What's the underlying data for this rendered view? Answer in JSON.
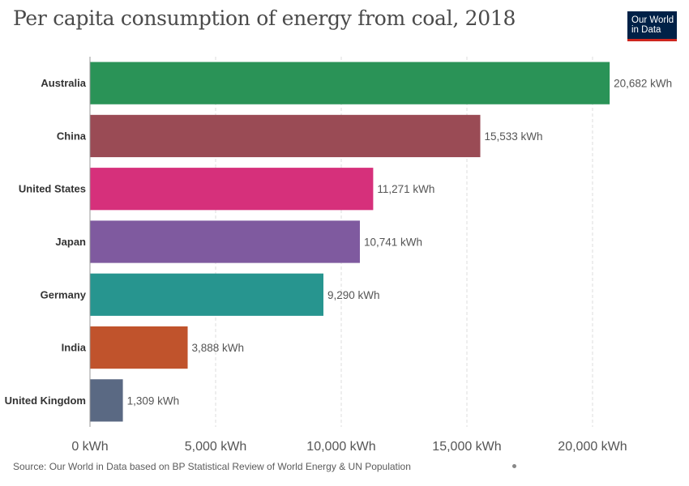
{
  "title": "Per capita consumption of energy from coal, 2018",
  "logo": {
    "line1": "Our World",
    "line2": "in Data"
  },
  "source": "Source: Our World in Data based on BP Statistical Review of World Energy & UN Population",
  "chart_data": {
    "type": "bar",
    "orientation": "horizontal",
    "title": "Per capita consumption of energy from coal, 2018",
    "categories": [
      "Australia",
      "China",
      "United States",
      "Japan",
      "Germany",
      "India",
      "United Kingdom"
    ],
    "values": [
      20682,
      15533,
      11271,
      10741,
      9290,
      3888,
      1309
    ],
    "value_labels": [
      "20,682 kWh",
      "15,533 kWh",
      "11,271 kWh",
      "10,741 kWh",
      "9,290 kWh",
      "3,888 kWh",
      "1,309 kWh"
    ],
    "colors": [
      "#2a9357",
      "#9a4b55",
      "#d6307b",
      "#7f5a9f",
      "#27958f",
      "#c0532c",
      "#5a6983"
    ],
    "xlim": [
      0,
      20000
    ],
    "x_ticks": [
      0,
      5000,
      10000,
      15000,
      20000
    ],
    "x_tick_labels": [
      "0 kWh",
      "5,000 kWh",
      "10,000 kWh",
      "15,000 kWh",
      "20,000 kWh"
    ],
    "grid": true,
    "xlabel": "",
    "ylabel": ""
  }
}
